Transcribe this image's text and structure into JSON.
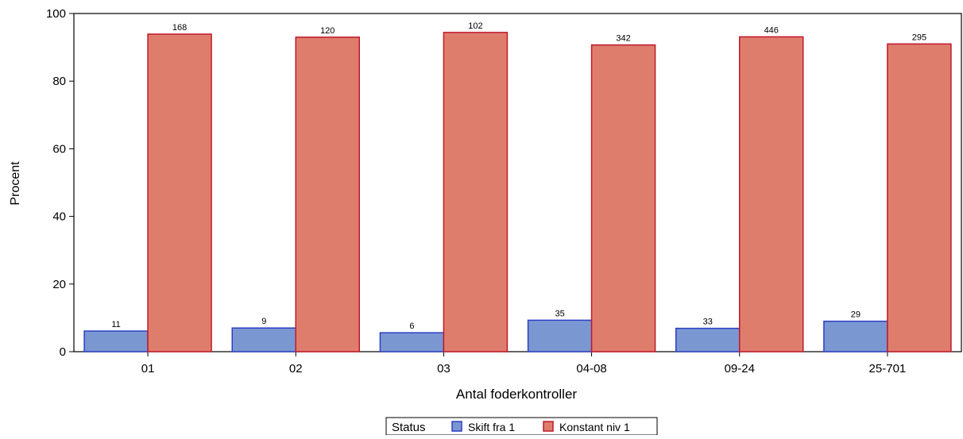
{
  "chart_data": {
    "type": "bar",
    "title": "",
    "xlabel": "Antal foderkontroller",
    "ylabel": "Procent",
    "ylim": [
      0,
      100
    ],
    "yticks": [
      0,
      20,
      40,
      60,
      80,
      100
    ],
    "grid": false,
    "legend_position": "bottom-center",
    "legend_title": "Status",
    "categories": [
      "01",
      "02",
      "03",
      "04-08",
      "09-24",
      "25-701"
    ],
    "series": [
      {
        "name": "Skift fra 1",
        "color": "#7b97d1",
        "stroke": "#2c3fc4",
        "values": [
          6.1,
          7.0,
          5.6,
          9.3,
          6.9,
          9.0
        ],
        "labels": [
          "11",
          "9",
          "6",
          "35",
          "33",
          "29"
        ]
      },
      {
        "name": "Konstant niv 1",
        "color": "#df7d6c",
        "stroke": "#c0192b",
        "values": [
          93.9,
          93.0,
          94.4,
          90.7,
          93.1,
          91.0
        ],
        "labels": [
          "168",
          "120",
          "102",
          "342",
          "446",
          "295"
        ]
      }
    ]
  }
}
